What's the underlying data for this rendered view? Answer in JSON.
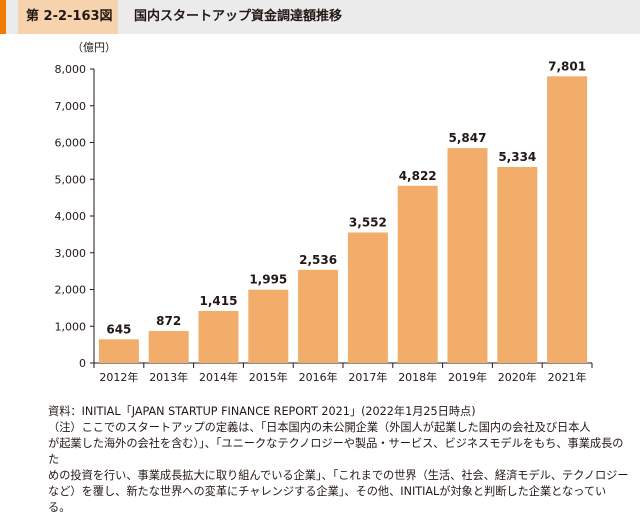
{
  "header": {
    "figure_id": "第 2-2-163図",
    "title": "国内スタートアップ資金調達額推移"
  },
  "chart_data": {
    "type": "bar",
    "unit_label": "（億円）",
    "categories": [
      "2012年",
      "2013年",
      "2014年",
      "2015年",
      "2016年",
      "2017年",
      "2018年",
      "2019年",
      "2020年",
      "2021年"
    ],
    "values": [
      645,
      872,
      1415,
      1995,
      2536,
      3552,
      4822,
      5847,
      5334,
      7801
    ],
    "value_labels": [
      "645",
      "872",
      "1,415",
      "1,995",
      "2,536",
      "3,552",
      "4,822",
      "5,847",
      "5,334",
      "7,801"
    ],
    "ylim": [
      0,
      8000
    ],
    "yticks": [
      0,
      1000,
      2000,
      3000,
      4000,
      5000,
      6000,
      7000,
      8000
    ],
    "ytick_labels": [
      "0",
      "1,000",
      "2,000",
      "3,000",
      "4,000",
      "5,000",
      "6,000",
      "7,000",
      "8,000"
    ],
    "bar_color": "#f3ad6a",
    "grid": false
  },
  "notes": {
    "source": "資料：INITIAL「JAPAN STARTUP FINANCE REPORT 2021」(2022年1月25日時点)",
    "lines": [
      "（注）ここでのスタートアップの定義は、「日本国内の未公開企業（外国人が起業した国内の会社及び日本人",
      "が起業した海外の会社を含む）」、「ユニークなテクノロジーや製品・サービス、ビジネスモデルをもち、事業成長のた",
      "めの投資を行い、事業成長拡大に取り組んでいる企業」、「これまでの世界（生活、社会、経済モデル、テクノロジー",
      "など）を覆し、新たな世界への変革にチャレンジする企業」、その他、INITIALが対象と判断した企業となってい",
      "る。"
    ]
  }
}
